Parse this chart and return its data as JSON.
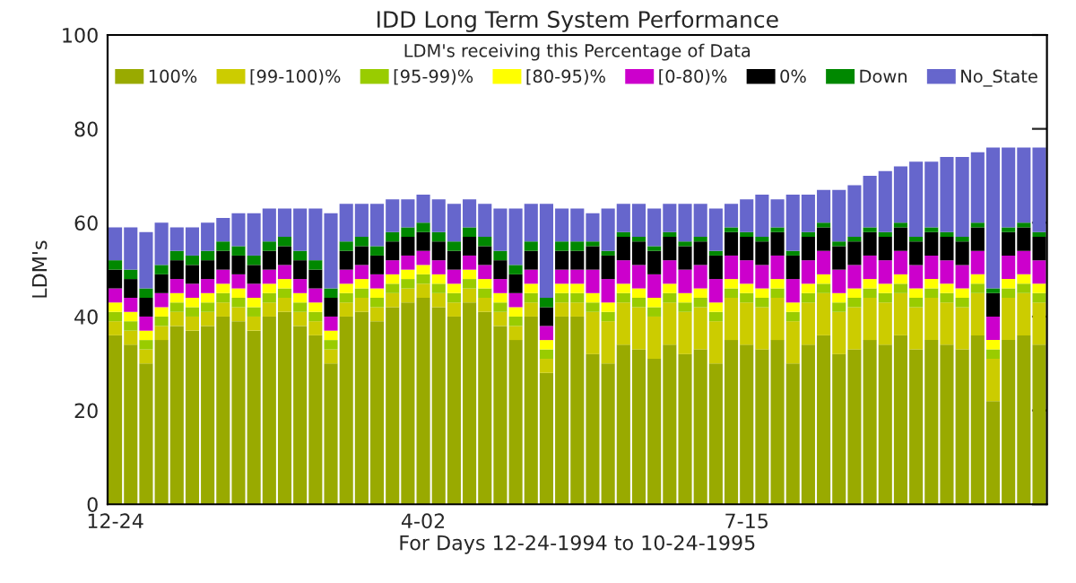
{
  "chart_data": {
    "type": "bar",
    "stacked": true,
    "title": "IDD Long Term System Performance",
    "legend_title": "LDM's receiving this Percentage of Data",
    "xlabel": "For Days 12-24-1994 to 10-24-1995",
    "ylabel": "LDM's",
    "ylim": [
      0,
      100
    ],
    "yticks": [
      0,
      20,
      40,
      60,
      80,
      100
    ],
    "grid": false,
    "legend": "top",
    "categories": [
      "12-24",
      null,
      null,
      null,
      null,
      null,
      null,
      null,
      null,
      null,
      null,
      null,
      null,
      null,
      null,
      null,
      null,
      null,
      null,
      null,
      "4-02",
      null,
      null,
      null,
      null,
      null,
      null,
      null,
      null,
      null,
      null,
      null,
      null,
      null,
      null,
      null,
      null,
      null,
      null,
      null,
      null,
      "7-15",
      null,
      null,
      null,
      null,
      null,
      null,
      null,
      null,
      null,
      null,
      null,
      null,
      null,
      null,
      null,
      null,
      null,
      null,
      null
    ],
    "series": [
      {
        "name": "100%",
        "color": "#99aa00",
        "values": [
          36,
          34,
          30,
          35,
          38,
          37,
          38,
          40,
          39,
          37,
          40,
          41,
          38,
          36,
          30,
          40,
          41,
          39,
          42,
          43,
          44,
          42,
          40,
          43,
          41,
          38,
          35,
          40,
          28,
          40,
          40,
          32,
          30,
          34,
          33,
          31,
          34,
          32,
          33,
          30,
          35,
          34,
          33,
          35,
          30,
          34,
          36,
          32,
          33,
          35,
          34,
          36,
          33,
          35,
          34,
          33,
          36,
          22,
          35,
          36,
          34
        ]
      },
      {
        "name": "[99-100)%",
        "color": "#cccc00",
        "values": [
          3,
          3,
          3,
          3,
          3,
          3,
          3,
          3,
          3,
          3,
          3,
          3,
          3,
          3,
          3,
          3,
          3,
          3,
          3,
          3,
          3,
          3,
          3,
          3,
          3,
          3,
          3,
          3,
          3,
          3,
          3,
          9,
          9,
          9,
          9,
          9,
          9,
          9,
          9,
          9,
          9,
          9,
          9,
          9,
          9,
          9,
          9,
          9,
          9,
          9,
          9,
          9,
          9,
          9,
          9,
          9,
          9,
          9,
          9,
          9,
          9
        ]
      },
      {
        "name": "[95-99)%",
        "color": "#99cc00",
        "values": [
          2,
          2,
          2,
          2,
          2,
          2,
          2,
          2,
          2,
          2,
          2,
          2,
          2,
          2,
          2,
          2,
          2,
          2,
          2,
          2,
          2,
          2,
          2,
          2,
          2,
          2,
          2,
          2,
          2,
          2,
          2,
          2,
          2,
          2,
          2,
          2,
          2,
          2,
          2,
          2,
          2,
          2,
          2,
          2,
          2,
          2,
          2,
          2,
          2,
          2,
          2,
          2,
          2,
          2,
          2,
          2,
          2,
          2,
          2,
          2,
          2
        ]
      },
      {
        "name": "[80-95)%",
        "color": "#ffff00",
        "values": [
          2,
          2,
          2,
          2,
          2,
          2,
          2,
          2,
          2,
          2,
          2,
          2,
          2,
          2,
          2,
          2,
          2,
          2,
          2,
          2,
          2,
          2,
          2,
          2,
          2,
          2,
          2,
          2,
          2,
          2,
          2,
          2,
          2,
          2,
          2,
          2,
          2,
          2,
          2,
          2,
          2,
          2,
          2,
          2,
          2,
          2,
          2,
          2,
          2,
          2,
          2,
          2,
          2,
          2,
          2,
          2,
          2,
          2,
          2,
          2,
          2
        ]
      },
      {
        "name": "[0-80)%",
        "color": "#cc00cc",
        "values": [
          3,
          3,
          3,
          3,
          3,
          3,
          3,
          3,
          3,
          3,
          3,
          3,
          3,
          3,
          3,
          3,
          3,
          3,
          3,
          3,
          3,
          3,
          3,
          3,
          3,
          3,
          3,
          3,
          3,
          3,
          3,
          5,
          5,
          5,
          5,
          5,
          5,
          5,
          5,
          5,
          5,
          5,
          5,
          5,
          5,
          5,
          5,
          5,
          5,
          5,
          5,
          5,
          5,
          5,
          5,
          5,
          5,
          5,
          5,
          5,
          5
        ]
      },
      {
        "name": "0%",
        "color": "#000000",
        "values": [
          4,
          4,
          4,
          4,
          4,
          4,
          4,
          4,
          4,
          4,
          4,
          4,
          4,
          4,
          4,
          4,
          4,
          4,
          4,
          4,
          4,
          4,
          4,
          4,
          4,
          4,
          4,
          4,
          4,
          4,
          4,
          5,
          5,
          5,
          5,
          5,
          5,
          5,
          5,
          5,
          5,
          5,
          5,
          5,
          5,
          5,
          5,
          5,
          5,
          5,
          5,
          5,
          5,
          5,
          5,
          5,
          5,
          5,
          5,
          5,
          5
        ]
      },
      {
        "name": "Down",
        "color": "#008800",
        "values": [
          2,
          2,
          2,
          2,
          2,
          2,
          2,
          2,
          2,
          2,
          2,
          2,
          2,
          2,
          2,
          2,
          2,
          2,
          2,
          2,
          2,
          2,
          2,
          2,
          2,
          2,
          2,
          2,
          2,
          2,
          2,
          1,
          1,
          1,
          1,
          1,
          1,
          1,
          1,
          1,
          1,
          1,
          1,
          1,
          1,
          1,
          1,
          1,
          1,
          1,
          1,
          1,
          1,
          1,
          1,
          1,
          1,
          1,
          1,
          1,
          1
        ]
      },
      {
        "name": "No_State",
        "color": "#6666cc",
        "values": [
          7,
          9,
          12,
          9,
          5,
          6,
          6,
          5,
          7,
          9,
          7,
          6,
          9,
          11,
          16,
          8,
          7,
          9,
          7,
          6,
          6,
          7,
          8,
          6,
          7,
          9,
          12,
          8,
          20,
          7,
          7,
          6,
          9,
          6,
          7,
          8,
          6,
          8,
          7,
          9,
          5,
          7,
          9,
          6,
          12,
          8,
          7,
          11,
          11,
          11,
          13,
          12,
          16,
          14,
          16,
          17,
          15,
          30,
          17,
          16,
          18
        ]
      }
    ]
  }
}
